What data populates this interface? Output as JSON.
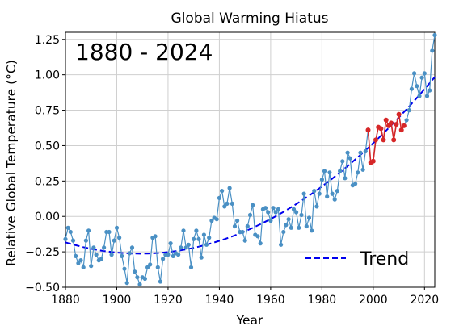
{
  "chart_data": {
    "type": "line",
    "title": "Global Warming Hiatus",
    "xlabel": "Year",
    "ylabel": "Relative Global Temperature (°C)",
    "annotation": "1880 - 2024",
    "xlim": [
      1880,
      2024
    ],
    "ylim": [
      -0.5,
      1.3
    ],
    "xticks": [
      1880,
      1900,
      1920,
      1940,
      1960,
      1980,
      2000,
      2020
    ],
    "yticks": [
      -0.5,
      -0.25,
      0.0,
      0.25,
      0.5,
      0.75,
      1.0,
      1.25
    ],
    "ytick_labels": [
      "−0.50",
      "−0.25",
      "0.00",
      "0.25",
      "0.50",
      "0.75",
      "1.00",
      "1.25"
    ],
    "grid": true,
    "legend": {
      "position": "bottom-right",
      "entries": [
        "Trend"
      ]
    },
    "colors": {
      "series": "#4a90c4",
      "hiatus": "#d62728",
      "trend": "#0000ee"
    },
    "x": [
      1880,
      1881,
      1882,
      1883,
      1884,
      1885,
      1886,
      1887,
      1888,
      1889,
      1890,
      1891,
      1892,
      1893,
      1894,
      1895,
      1896,
      1897,
      1898,
      1899,
      1900,
      1901,
      1902,
      1903,
      1904,
      1905,
      1906,
      1907,
      1908,
      1909,
      1910,
      1911,
      1912,
      1913,
      1914,
      1915,
      1916,
      1917,
      1918,
      1919,
      1920,
      1921,
      1922,
      1923,
      1924,
      1925,
      1926,
      1927,
      1928,
      1929,
      1930,
      1931,
      1932,
      1933,
      1934,
      1935,
      1936,
      1937,
      1938,
      1939,
      1940,
      1941,
      1942,
      1943,
      1944,
      1945,
      1946,
      1947,
      1948,
      1949,
      1950,
      1951,
      1952,
      1953,
      1954,
      1955,
      1956,
      1957,
      1958,
      1959,
      1960,
      1961,
      1962,
      1963,
      1964,
      1965,
      1966,
      1967,
      1968,
      1969,
      1970,
      1971,
      1972,
      1973,
      1974,
      1975,
      1976,
      1977,
      1978,
      1979,
      1980,
      1981,
      1982,
      1983,
      1984,
      1985,
      1986,
      1987,
      1988,
      1989,
      1990,
      1991,
      1992,
      1993,
      1994,
      1995,
      1996,
      1997,
      1998,
      1999,
      2000,
      2001,
      2002,
      2003,
      2004,
      2005,
      2006,
      2007,
      2008,
      2009,
      2010,
      2011,
      2012,
      2013,
      2014,
      2015,
      2016,
      2017,
      2018,
      2019,
      2020,
      2021,
      2022,
      2023,
      2024
    ],
    "y": [
      -0.16,
      -0.08,
      -0.11,
      -0.17,
      -0.28,
      -0.33,
      -0.31,
      -0.36,
      -0.17,
      -0.1,
      -0.35,
      -0.22,
      -0.27,
      -0.31,
      -0.3,
      -0.22,
      -0.11,
      -0.11,
      -0.27,
      -0.17,
      -0.08,
      -0.15,
      -0.28,
      -0.37,
      -0.47,
      -0.26,
      -0.22,
      -0.39,
      -0.43,
      -0.48,
      -0.43,
      -0.44,
      -0.36,
      -0.34,
      -0.15,
      -0.14,
      -0.36,
      -0.46,
      -0.3,
      -0.27,
      -0.27,
      -0.19,
      -0.28,
      -0.26,
      -0.27,
      -0.22,
      -0.1,
      -0.22,
      -0.2,
      -0.36,
      -0.16,
      -0.1,
      -0.16,
      -0.29,
      -0.13,
      -0.2,
      -0.15,
      -0.03,
      -0.01,
      -0.02,
      0.13,
      0.18,
      0.07,
      0.09,
      0.2,
      0.09,
      -0.07,
      -0.03,
      -0.11,
      -0.11,
      -0.17,
      -0.07,
      0.01,
      0.08,
      -0.13,
      -0.14,
      -0.19,
      0.05,
      0.06,
      0.03,
      -0.03,
      0.06,
      0.03,
      0.05,
      -0.2,
      -0.11,
      -0.06,
      -0.02,
      -0.08,
      0.05,
      0.03,
      -0.08,
      0.01,
      0.16,
      -0.07,
      -0.01,
      -0.1,
      0.18,
      0.07,
      0.16,
      0.26,
      0.32,
      0.14,
      0.31,
      0.16,
      0.12,
      0.18,
      0.32,
      0.39,
      0.27,
      0.45,
      0.41,
      0.22,
      0.23,
      0.31,
      0.45,
      0.33,
      0.46,
      0.61,
      0.38,
      0.39,
      0.54,
      0.63,
      0.62,
      0.54,
      0.68,
      0.64,
      0.66,
      0.54,
      0.65,
      0.72,
      0.61,
      0.64,
      0.68,
      0.75,
      0.9,
      1.01,
      0.92,
      0.85,
      0.98,
      1.01,
      0.85,
      0.89,
      1.17,
      1.28
    ],
    "hiatus_range": [
      1998,
      2012
    ],
    "trend_label": "Trend"
  }
}
